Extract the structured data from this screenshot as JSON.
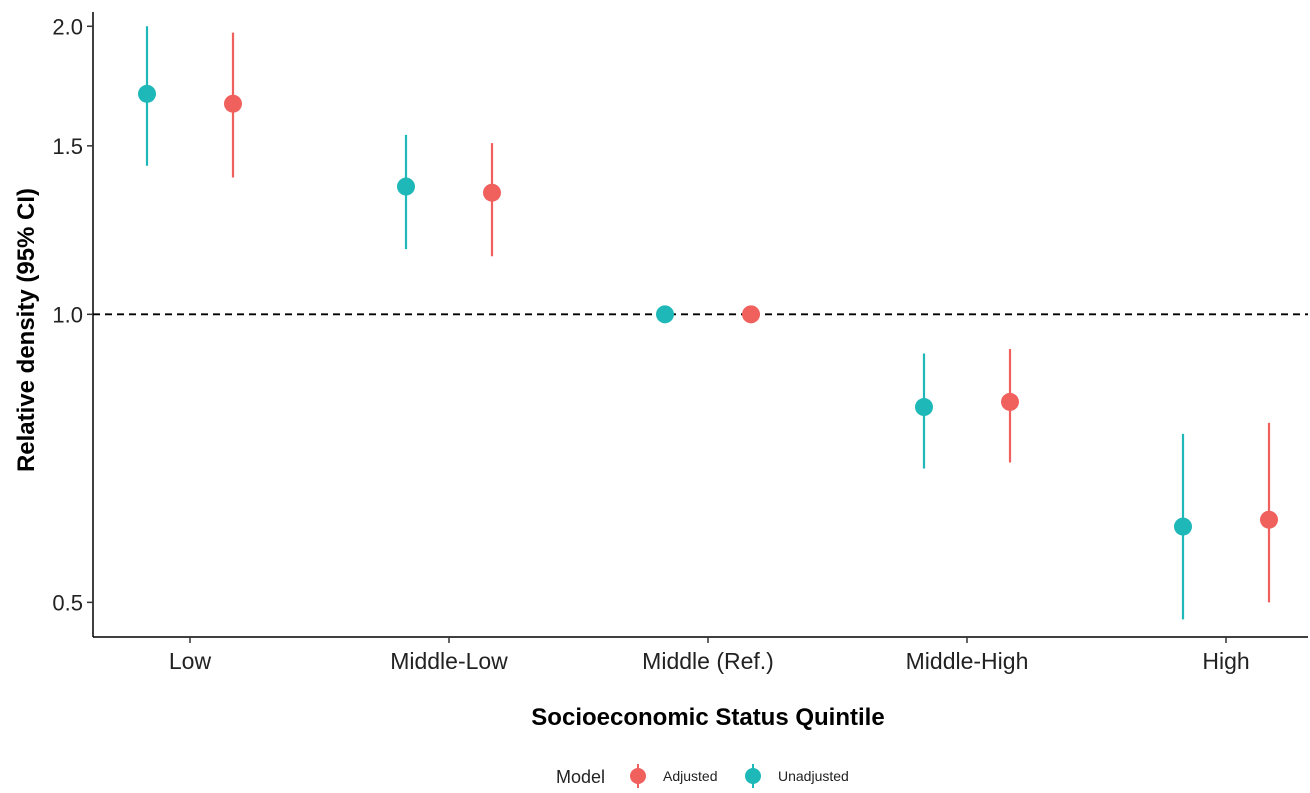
{
  "chart_data": {
    "type": "scatter",
    "subtype": "point-range",
    "title": "",
    "xlabel": "Socioeconomic Status Quintile",
    "ylabel": "Relative density (95% CI)",
    "y_scale": "log",
    "ylim": [
      0.46,
      2.07
    ],
    "y_ticks": [
      0.5,
      1.0,
      1.5,
      2.0
    ],
    "y_tick_labels": [
      "0.5",
      "1.0",
      "1.5",
      "2.0"
    ],
    "reference_line": 1.0,
    "reference_line_style": "dashed",
    "grid": false,
    "legend_placement": "bottom",
    "legend_title": "Model",
    "categories": [
      "Low",
      "Middle-Low",
      "Middle (Ref.)",
      "Middle-High",
      "High"
    ],
    "series": [
      {
        "name": "Unadjusted",
        "color": "#1FB8B8",
        "values": [
          1.7,
          1.36,
          1.0,
          0.8,
          0.6
        ],
        "lower": [
          1.43,
          1.17,
          1.0,
          0.69,
          0.48
        ],
        "upper": [
          2.0,
          1.54,
          1.0,
          0.91,
          0.75
        ]
      },
      {
        "name": "Adjusted",
        "color": "#F0605D",
        "values": [
          1.66,
          1.34,
          1.0,
          0.81,
          0.61
        ],
        "lower": [
          1.39,
          1.15,
          1.0,
          0.7,
          0.5
        ],
        "upper": [
          1.97,
          1.51,
          1.0,
          0.92,
          0.77
        ]
      }
    ]
  },
  "legend": {
    "title": "Model",
    "items": [
      {
        "label": "Adjusted",
        "color": "#F0605D"
      },
      {
        "label": "Unadjusted",
        "color": "#1FB8B8"
      }
    ]
  }
}
